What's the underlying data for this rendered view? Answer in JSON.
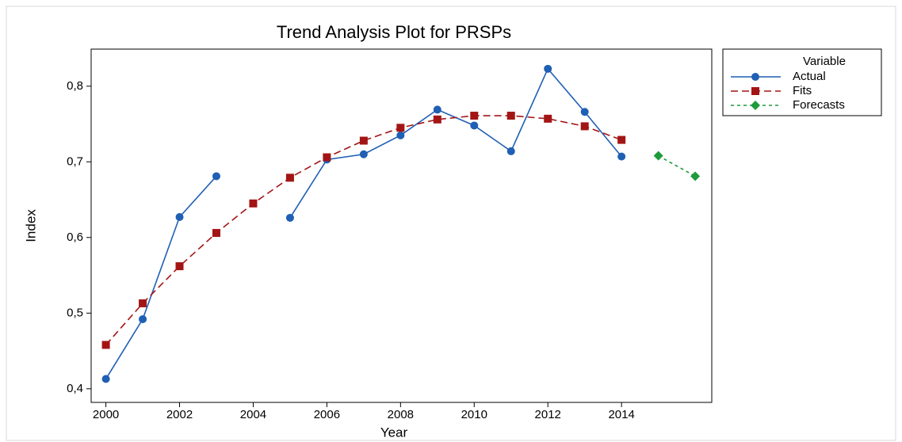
{
  "chart_data": {
    "type": "line",
    "title": "Trend Analysis Plot for PRSPs",
    "xlabel": "Year",
    "ylabel": "Index",
    "x": [
      2000,
      2001,
      2002,
      2003,
      2004,
      2005,
      2006,
      2007,
      2008,
      2009,
      2010,
      2011,
      2012,
      2013,
      2014,
      2015,
      2016
    ],
    "series": [
      {
        "name": "Actual",
        "color": "#1f5fb4",
        "marker": "circle",
        "dash": "solid",
        "values": [
          0.413,
          0.492,
          0.627,
          0.681,
          null,
          0.626,
          0.703,
          0.71,
          0.735,
          0.769,
          0.748,
          0.714,
          0.823,
          0.766,
          0.707,
          null,
          null
        ]
      },
      {
        "name": "Fits",
        "color": "#a31515",
        "marker": "square",
        "dash": "dashed",
        "values": [
          0.458,
          0.513,
          0.562,
          0.606,
          0.645,
          0.679,
          0.706,
          0.728,
          0.745,
          0.756,
          0.761,
          0.761,
          0.757,
          0.747,
          0.729,
          null,
          null
        ]
      },
      {
        "name": "Forecasts",
        "color": "#1e9b3a",
        "marker": "diamond",
        "dash": "dotted",
        "values": [
          null,
          null,
          null,
          null,
          null,
          null,
          null,
          null,
          null,
          null,
          null,
          null,
          null,
          null,
          null,
          0.708,
          0.681
        ]
      }
    ],
    "legend_title": "Variable",
    "legend": "outside-right",
    "xlim": [
      1999.6,
      2016.45
    ],
    "xticks": [
      2000,
      2002,
      2004,
      2006,
      2008,
      2010,
      2012,
      2014
    ],
    "ylim": [
      0.382,
      0.849
    ],
    "yticks": [
      {
        "value": 0.4,
        "label": "0,4"
      },
      {
        "value": 0.5,
        "label": "0,5"
      },
      {
        "value": 0.6,
        "label": "0,6"
      },
      {
        "value": 0.7,
        "label": "0,7"
      },
      {
        "value": 0.8,
        "label": "0,8"
      }
    ],
    "grid": false
  }
}
